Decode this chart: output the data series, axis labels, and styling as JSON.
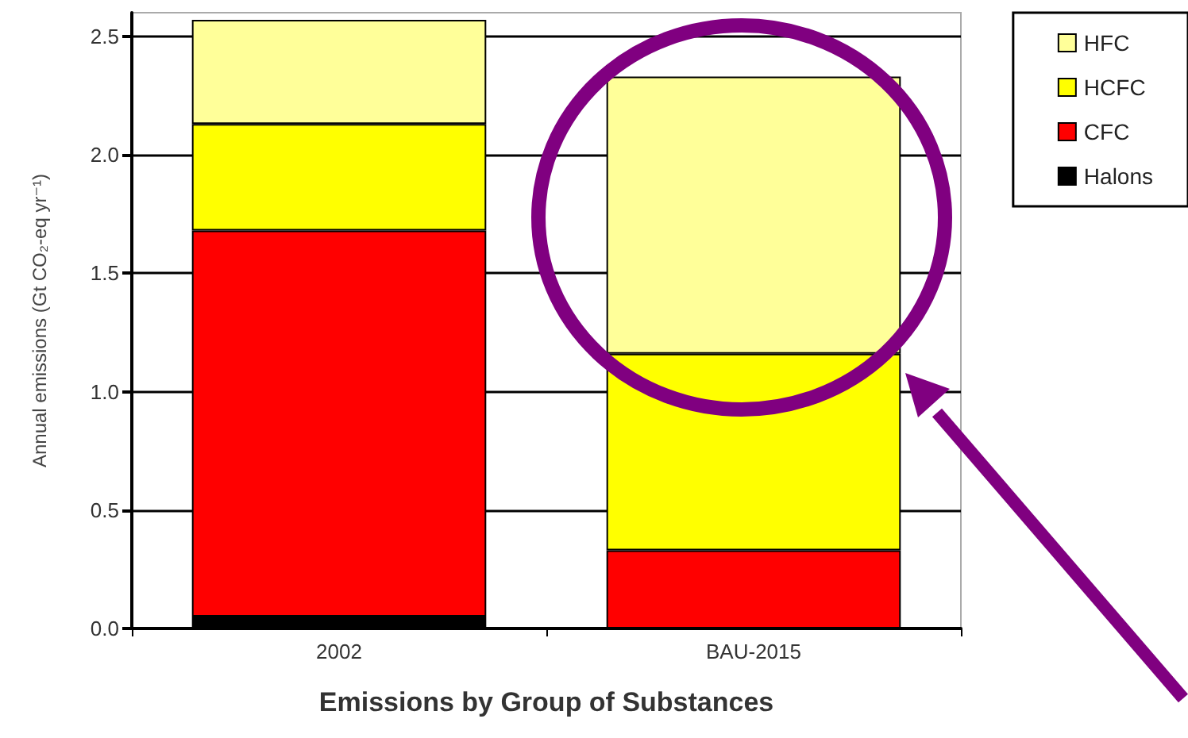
{
  "chart_data": {
    "type": "bar",
    "stacked": true,
    "xlabel": "Emissions by Group of Substances",
    "ylabel": "Annual emissions (Gt CO₂-eq yr⁻¹)",
    "categories": [
      "2002",
      "BAU-2015"
    ],
    "series": [
      {
        "name": "Halons",
        "color": "#000000",
        "values": [
          0.05,
          0
        ]
      },
      {
        "name": "CFC",
        "color": "#ff0000",
        "values": [
          1.63,
          0.33
        ]
      },
      {
        "name": "HCFC",
        "color": "#ffff00",
        "values": [
          0.45,
          0.83
        ]
      },
      {
        "name": "HFC",
        "color": "#ffff99",
        "values": [
          0.44,
          1.17
        ]
      }
    ],
    "ylim": [
      0,
      2.6
    ],
    "yticks": [
      {
        "value": 0,
        "label": "0.0"
      },
      {
        "value": 0.5,
        "label": "0.5"
      },
      {
        "value": 1,
        "label": "1.0"
      },
      {
        "value": 1.5,
        "label": "1.5"
      },
      {
        "value": 2,
        "label": "2.0"
      },
      {
        "value": 2.5,
        "label": "2.5"
      }
    ],
    "grid": "y",
    "legend": "right"
  }
}
